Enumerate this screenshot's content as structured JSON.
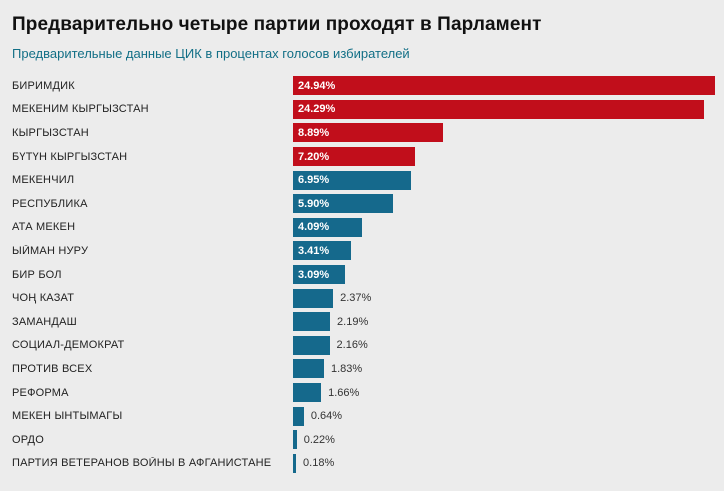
{
  "chart_data": {
    "type": "bar",
    "orientation": "horizontal",
    "title": "Предварительно четыре партии проходят в Парламент",
    "subtitle": "Предварительные данные ЦИК в процентах голосов избирателей",
    "xlabel": "",
    "ylabel": "",
    "xlim": [
      0,
      25.0
    ],
    "grid": false,
    "legend": "none",
    "inside_label_threshold": 3.0,
    "colors": {
      "red": "#c10e1b",
      "teal": "#15698c",
      "inside_label": "#ffffff",
      "outside_label": "#333333",
      "background": "#ececec",
      "subtitle": "#126f86"
    },
    "bars": [
      {
        "label": "БИРИМДИК",
        "value": 24.94,
        "display": "24.94%",
        "color": "red"
      },
      {
        "label": "МЕКЕНИМ КЫРГЫЗСТАН",
        "value": 24.29,
        "display": "24.29%",
        "color": "red"
      },
      {
        "label": "КЫРГЫЗСТАН",
        "value": 8.89,
        "display": "8.89%",
        "color": "red"
      },
      {
        "label": "БҮТҮН КЫРГЫЗСТАН",
        "value": 7.2,
        "display": "7.20%",
        "color": "red"
      },
      {
        "label": "МЕКЕНЧИЛ",
        "value": 6.95,
        "display": "6.95%",
        "color": "teal"
      },
      {
        "label": "РЕСПУБЛИКА",
        "value": 5.9,
        "display": "5.90%",
        "color": "teal"
      },
      {
        "label": "АТА МЕКЕН",
        "value": 4.09,
        "display": "4.09%",
        "color": "teal"
      },
      {
        "label": "ЫЙМАН НУРУ",
        "value": 3.41,
        "display": "3.41%",
        "color": "teal"
      },
      {
        "label": "БИР БОЛ",
        "value": 3.09,
        "display": "3.09%",
        "color": "teal"
      },
      {
        "label": "ЧОҢ КАЗАТ",
        "value": 2.37,
        "display": "2.37%",
        "color": "teal"
      },
      {
        "label": "ЗАМАНДАШ",
        "value": 2.19,
        "display": "2.19%",
        "color": "teal"
      },
      {
        "label": "СОЦИАЛ-ДЕМОКРАТ",
        "value": 2.16,
        "display": "2.16%",
        "color": "teal"
      },
      {
        "label": "ПРОТИВ ВСЕХ",
        "value": 1.83,
        "display": "1.83%",
        "color": "teal"
      },
      {
        "label": "РЕФОРМА",
        "value": 1.66,
        "display": "1.66%",
        "color": "teal"
      },
      {
        "label": "МЕКЕН ЫНТЫМАГЫ",
        "value": 0.64,
        "display": "0.64%",
        "color": "teal"
      },
      {
        "label": "ОРДО",
        "value": 0.22,
        "display": "0.22%",
        "color": "teal"
      },
      {
        "label": "ПАРТИЯ ВЕТЕРАНОВ ВОЙНЫ В АФГАНИСТАНЕ",
        "value": 0.18,
        "display": "0.18%",
        "color": "teal"
      }
    ]
  }
}
